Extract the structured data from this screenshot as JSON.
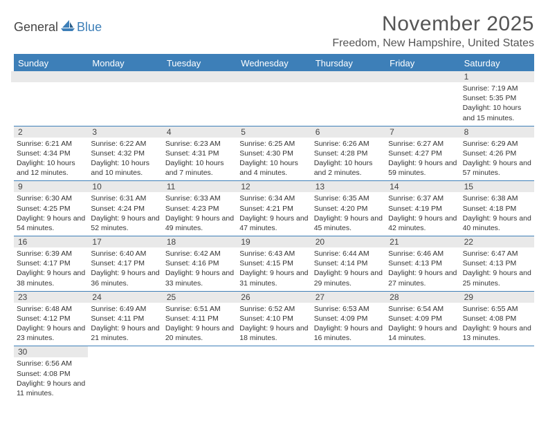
{
  "logo": {
    "text1": "General",
    "text2": "Blue"
  },
  "title": "November 2025",
  "location": "Freedom, New Hampshire, United States",
  "colors": {
    "accent": "#3d7fb8",
    "header_bg": "#3d7fb8",
    "daynum_bg": "#e9e9e9"
  },
  "weekdays": [
    "Sunday",
    "Monday",
    "Tuesday",
    "Wednesday",
    "Thursday",
    "Friday",
    "Saturday"
  ],
  "weeks": [
    [
      null,
      null,
      null,
      null,
      null,
      null,
      {
        "n": "1",
        "sunrise": "Sunrise: 7:19 AM",
        "sunset": "Sunset: 5:35 PM",
        "daylight": "Daylight: 10 hours and 15 minutes."
      }
    ],
    [
      {
        "n": "2",
        "sunrise": "Sunrise: 6:21 AM",
        "sunset": "Sunset: 4:34 PM",
        "daylight": "Daylight: 10 hours and 12 minutes."
      },
      {
        "n": "3",
        "sunrise": "Sunrise: 6:22 AM",
        "sunset": "Sunset: 4:32 PM",
        "daylight": "Daylight: 10 hours and 10 minutes."
      },
      {
        "n": "4",
        "sunrise": "Sunrise: 6:23 AM",
        "sunset": "Sunset: 4:31 PM",
        "daylight": "Daylight: 10 hours and 7 minutes."
      },
      {
        "n": "5",
        "sunrise": "Sunrise: 6:25 AM",
        "sunset": "Sunset: 4:30 PM",
        "daylight": "Daylight: 10 hours and 4 minutes."
      },
      {
        "n": "6",
        "sunrise": "Sunrise: 6:26 AM",
        "sunset": "Sunset: 4:28 PM",
        "daylight": "Daylight: 10 hours and 2 minutes."
      },
      {
        "n": "7",
        "sunrise": "Sunrise: 6:27 AM",
        "sunset": "Sunset: 4:27 PM",
        "daylight": "Daylight: 9 hours and 59 minutes."
      },
      {
        "n": "8",
        "sunrise": "Sunrise: 6:29 AM",
        "sunset": "Sunset: 4:26 PM",
        "daylight": "Daylight: 9 hours and 57 minutes."
      }
    ],
    [
      {
        "n": "9",
        "sunrise": "Sunrise: 6:30 AM",
        "sunset": "Sunset: 4:25 PM",
        "daylight": "Daylight: 9 hours and 54 minutes."
      },
      {
        "n": "10",
        "sunrise": "Sunrise: 6:31 AM",
        "sunset": "Sunset: 4:24 PM",
        "daylight": "Daylight: 9 hours and 52 minutes."
      },
      {
        "n": "11",
        "sunrise": "Sunrise: 6:33 AM",
        "sunset": "Sunset: 4:23 PM",
        "daylight": "Daylight: 9 hours and 49 minutes."
      },
      {
        "n": "12",
        "sunrise": "Sunrise: 6:34 AM",
        "sunset": "Sunset: 4:21 PM",
        "daylight": "Daylight: 9 hours and 47 minutes."
      },
      {
        "n": "13",
        "sunrise": "Sunrise: 6:35 AM",
        "sunset": "Sunset: 4:20 PM",
        "daylight": "Daylight: 9 hours and 45 minutes."
      },
      {
        "n": "14",
        "sunrise": "Sunrise: 6:37 AM",
        "sunset": "Sunset: 4:19 PM",
        "daylight": "Daylight: 9 hours and 42 minutes."
      },
      {
        "n": "15",
        "sunrise": "Sunrise: 6:38 AM",
        "sunset": "Sunset: 4:18 PM",
        "daylight": "Daylight: 9 hours and 40 minutes."
      }
    ],
    [
      {
        "n": "16",
        "sunrise": "Sunrise: 6:39 AM",
        "sunset": "Sunset: 4:17 PM",
        "daylight": "Daylight: 9 hours and 38 minutes."
      },
      {
        "n": "17",
        "sunrise": "Sunrise: 6:40 AM",
        "sunset": "Sunset: 4:17 PM",
        "daylight": "Daylight: 9 hours and 36 minutes."
      },
      {
        "n": "18",
        "sunrise": "Sunrise: 6:42 AM",
        "sunset": "Sunset: 4:16 PM",
        "daylight": "Daylight: 9 hours and 33 minutes."
      },
      {
        "n": "19",
        "sunrise": "Sunrise: 6:43 AM",
        "sunset": "Sunset: 4:15 PM",
        "daylight": "Daylight: 9 hours and 31 minutes."
      },
      {
        "n": "20",
        "sunrise": "Sunrise: 6:44 AM",
        "sunset": "Sunset: 4:14 PM",
        "daylight": "Daylight: 9 hours and 29 minutes."
      },
      {
        "n": "21",
        "sunrise": "Sunrise: 6:46 AM",
        "sunset": "Sunset: 4:13 PM",
        "daylight": "Daylight: 9 hours and 27 minutes."
      },
      {
        "n": "22",
        "sunrise": "Sunrise: 6:47 AM",
        "sunset": "Sunset: 4:13 PM",
        "daylight": "Daylight: 9 hours and 25 minutes."
      }
    ],
    [
      {
        "n": "23",
        "sunrise": "Sunrise: 6:48 AM",
        "sunset": "Sunset: 4:12 PM",
        "daylight": "Daylight: 9 hours and 23 minutes."
      },
      {
        "n": "24",
        "sunrise": "Sunrise: 6:49 AM",
        "sunset": "Sunset: 4:11 PM",
        "daylight": "Daylight: 9 hours and 21 minutes."
      },
      {
        "n": "25",
        "sunrise": "Sunrise: 6:51 AM",
        "sunset": "Sunset: 4:11 PM",
        "daylight": "Daylight: 9 hours and 20 minutes."
      },
      {
        "n": "26",
        "sunrise": "Sunrise: 6:52 AM",
        "sunset": "Sunset: 4:10 PM",
        "daylight": "Daylight: 9 hours and 18 minutes."
      },
      {
        "n": "27",
        "sunrise": "Sunrise: 6:53 AM",
        "sunset": "Sunset: 4:09 PM",
        "daylight": "Daylight: 9 hours and 16 minutes."
      },
      {
        "n": "28",
        "sunrise": "Sunrise: 6:54 AM",
        "sunset": "Sunset: 4:09 PM",
        "daylight": "Daylight: 9 hours and 14 minutes."
      },
      {
        "n": "29",
        "sunrise": "Sunrise: 6:55 AM",
        "sunset": "Sunset: 4:08 PM",
        "daylight": "Daylight: 9 hours and 13 minutes."
      }
    ],
    [
      {
        "n": "30",
        "sunrise": "Sunrise: 6:56 AM",
        "sunset": "Sunset: 4:08 PM",
        "daylight": "Daylight: 9 hours and 11 minutes."
      },
      null,
      null,
      null,
      null,
      null,
      null
    ]
  ]
}
